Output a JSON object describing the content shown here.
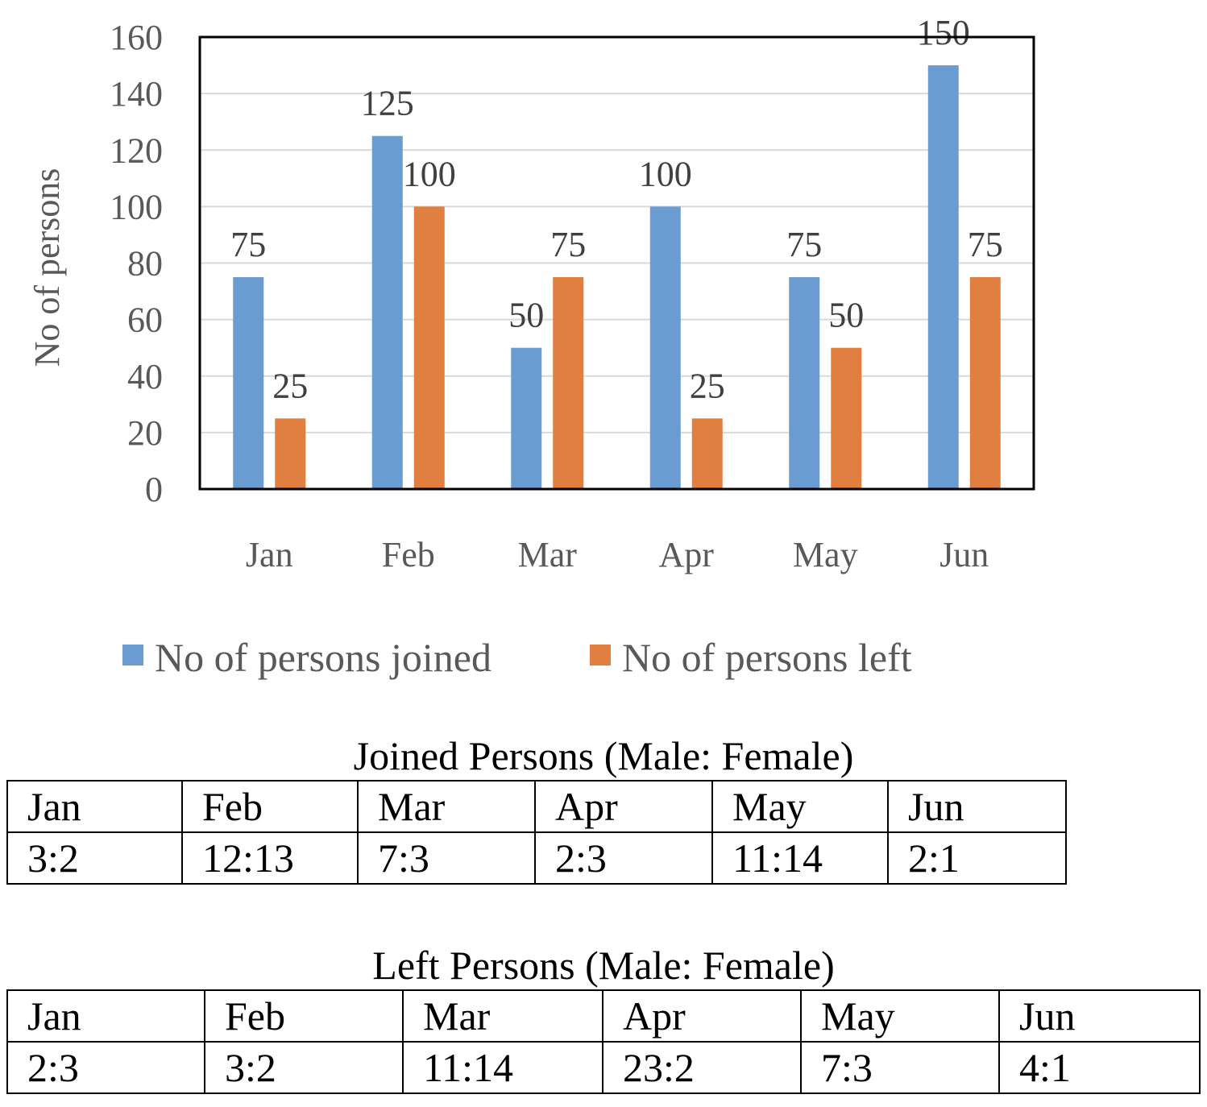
{
  "chart_data": {
    "type": "bar",
    "categories": [
      "Jan",
      "Feb",
      "Mar",
      "Apr",
      "May",
      "Jun"
    ],
    "series": [
      {
        "name": "No of persons joined",
        "values": [
          75,
          125,
          50,
          100,
          75,
          150
        ],
        "color": "#6a9bd1"
      },
      {
        "name": "No of persons left",
        "values": [
          25,
          100,
          75,
          25,
          50,
          75
        ],
        "color": "#e07f40"
      }
    ],
    "ylabel": "No of persons",
    "xlabel": "",
    "ylim": [
      0,
      160
    ],
    "yticks": [
      0,
      20,
      40,
      60,
      80,
      100,
      120,
      140,
      160
    ],
    "grid": true,
    "legend": "bottom"
  },
  "tables": [
    {
      "title": "Joined Persons (Male: Female)",
      "headers": [
        "Jan",
        "Feb",
        "Mar",
        "Apr",
        "May",
        "Jun"
      ],
      "values": [
        "3:2",
        "12:13",
        "7:3",
        "2:3",
        "11:14",
        "2:1"
      ]
    },
    {
      "title": "Left Persons (Male: Female)",
      "headers": [
        "Jan",
        "Feb",
        "Mar",
        "Apr",
        "May",
        "Jun"
      ],
      "values": [
        "2:3",
        "3:2",
        "11:14",
        "23:2",
        "7:3",
        "4:1"
      ]
    }
  ]
}
